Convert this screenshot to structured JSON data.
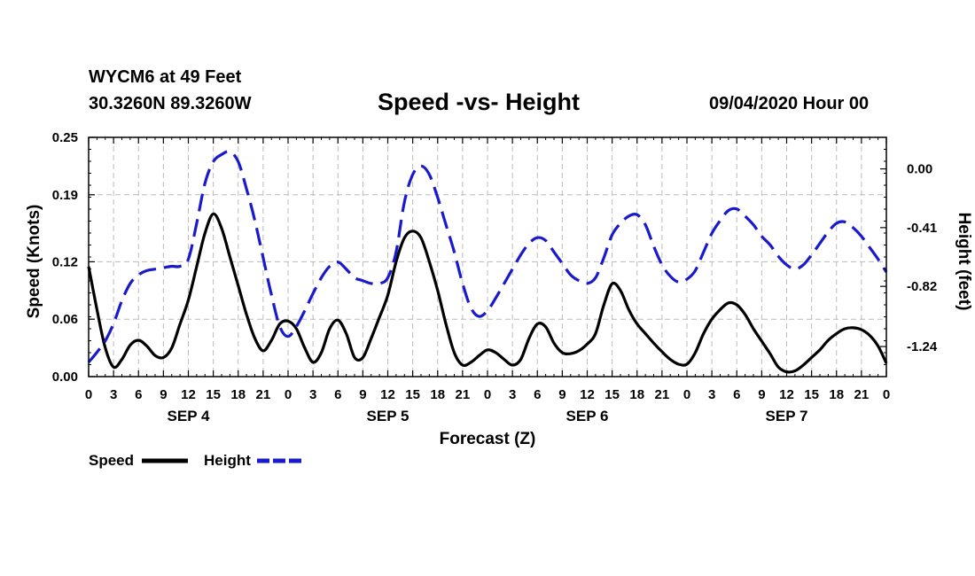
{
  "header": {
    "station": "WYCM6 at 49 Feet",
    "coords": "30.3260N 89.3260W",
    "title": "Speed -vs- Height",
    "datetime": "09/04/2020 Hour 00"
  },
  "colors": {
    "speed": "#000000",
    "height": "#1a1acd",
    "grid": "#bbbbbb"
  },
  "chart_data": {
    "type": "line",
    "title": "Speed -vs- Height",
    "xlabel": "Forecast (Z)",
    "ylabel": "Speed (Knots)",
    "y2label": "Height (feet)",
    "xlim": [
      0,
      96
    ],
    "ylim": [
      0,
      0.25
    ],
    "y2lim": [
      -1.45,
      0.22
    ],
    "x_tick_values": [
      0,
      3,
      6,
      9,
      12,
      15,
      18,
      21,
      24,
      27,
      30,
      33,
      36,
      39,
      42,
      45,
      48,
      51,
      54,
      57,
      60,
      63,
      66,
      69,
      72,
      75,
      78,
      81,
      84,
      87,
      90,
      93,
      96
    ],
    "x_tick_labels": [
      "0",
      "3",
      "6",
      "9",
      "12",
      "15",
      "18",
      "21",
      "0",
      "3",
      "6",
      "9",
      "12",
      "15",
      "18",
      "21",
      "0",
      "3",
      "6",
      "9",
      "12",
      "15",
      "18",
      "21",
      "0",
      "3",
      "6",
      "9",
      "12",
      "15",
      "18",
      "21",
      "0"
    ],
    "day_labels": [
      {
        "label": "SEP 4",
        "x": 12
      },
      {
        "label": "SEP 5",
        "x": 36
      },
      {
        "label": "SEP 6",
        "x": 60
      },
      {
        "label": "SEP 7",
        "x": 84
      }
    ],
    "y_ticks": [
      0.0,
      0.06,
      0.12,
      0.19,
      0.25
    ],
    "y_tick_labels": [
      "0.00",
      "0.06",
      "0.12",
      "0.19",
      "0.25"
    ],
    "y2_ticks": [
      0.0,
      -0.41,
      -0.82,
      -1.24
    ],
    "y2_tick_labels": [
      "0.00",
      "-0.41",
      "-0.82",
      "-1.24"
    ],
    "legend": [
      {
        "name": "Speed",
        "style": "solid"
      },
      {
        "name": "Height",
        "style": "dashed"
      }
    ],
    "legend_position": "bottom-left",
    "series": [
      {
        "name": "Speed",
        "axis": "left",
        "style": "solid",
        "x": [
          0,
          1,
          2,
          3,
          4,
          5,
          6,
          7,
          8,
          9,
          10,
          11,
          12,
          13,
          14,
          15,
          16,
          17,
          18,
          19,
          20,
          21,
          22,
          23,
          24,
          25,
          26,
          27,
          28,
          29,
          30,
          31,
          32,
          33,
          34,
          35,
          36,
          37,
          38,
          39,
          40,
          41,
          42,
          43,
          44,
          45,
          46,
          47,
          48,
          49,
          50,
          51,
          52,
          53,
          54,
          55,
          56,
          57,
          58,
          59,
          60,
          61,
          62,
          63,
          64,
          65,
          66,
          67,
          68,
          69,
          70,
          71,
          72,
          73,
          74,
          75,
          76,
          77,
          78,
          79,
          80,
          81,
          82,
          83,
          84,
          85,
          86,
          87,
          88,
          89,
          90,
          91,
          92,
          93,
          94,
          95,
          96
        ],
        "values": [
          0.115,
          0.07,
          0.03,
          0.01,
          0.018,
          0.033,
          0.038,
          0.032,
          0.022,
          0.02,
          0.03,
          0.055,
          0.08,
          0.115,
          0.15,
          0.17,
          0.155,
          0.125,
          0.095,
          0.065,
          0.04,
          0.027,
          0.038,
          0.055,
          0.058,
          0.05,
          0.03,
          0.015,
          0.025,
          0.05,
          0.059,
          0.045,
          0.02,
          0.02,
          0.04,
          0.062,
          0.085,
          0.12,
          0.145,
          0.152,
          0.145,
          0.12,
          0.09,
          0.055,
          0.025,
          0.012,
          0.015,
          0.022,
          0.028,
          0.025,
          0.018,
          0.012,
          0.018,
          0.04,
          0.055,
          0.052,
          0.035,
          0.025,
          0.024,
          0.027,
          0.034,
          0.045,
          0.075,
          0.097,
          0.09,
          0.07,
          0.055,
          0.045,
          0.035,
          0.026,
          0.018,
          0.013,
          0.013,
          0.025,
          0.045,
          0.06,
          0.07,
          0.077,
          0.075,
          0.065,
          0.05,
          0.037,
          0.024,
          0.01,
          0.005,
          0.006,
          0.012,
          0.02,
          0.028,
          0.038,
          0.045,
          0.05,
          0.051,
          0.049,
          0.043,
          0.032,
          0.014
        ]
      },
      {
        "name": "Height",
        "axis": "right",
        "style": "dashed",
        "x": [
          0,
          1,
          2,
          3,
          4,
          5,
          6,
          7,
          8,
          9,
          10,
          11,
          12,
          13,
          14,
          15,
          16,
          17,
          18,
          19,
          20,
          21,
          22,
          23,
          24,
          25,
          26,
          27,
          28,
          29,
          30,
          31,
          32,
          33,
          34,
          35,
          36,
          37,
          38,
          39,
          40,
          41,
          42,
          43,
          44,
          45,
          46,
          47,
          48,
          49,
          50,
          51,
          52,
          53,
          54,
          55,
          56,
          57,
          58,
          59,
          60,
          61,
          62,
          63,
          64,
          65,
          66,
          67,
          68,
          69,
          70,
          71,
          72,
          73,
          74,
          75,
          76,
          77,
          78,
          79,
          80,
          81,
          82,
          83,
          84,
          85,
          86,
          87,
          88,
          89,
          90,
          91,
          92,
          93,
          94,
          95,
          96
        ],
        "values": [
          -1.35,
          -1.28,
          -1.2,
          -1.08,
          -0.92,
          -0.8,
          -0.74,
          -0.71,
          -0.7,
          -0.69,
          -0.68,
          -0.68,
          -0.63,
          -0.38,
          -0.1,
          0.05,
          0.1,
          0.12,
          0.05,
          -0.14,
          -0.36,
          -0.62,
          -0.88,
          -1.1,
          -1.17,
          -1.1,
          -0.99,
          -0.87,
          -0.76,
          -0.68,
          -0.65,
          -0.7,
          -0.76,
          -0.78,
          -0.8,
          -0.8,
          -0.76,
          -0.58,
          -0.23,
          -0.04,
          0.02,
          -0.04,
          -0.2,
          -0.39,
          -0.58,
          -0.8,
          -0.97,
          -1.03,
          -0.99,
          -0.9,
          -0.8,
          -0.7,
          -0.6,
          -0.52,
          -0.48,
          -0.5,
          -0.58,
          -0.66,
          -0.74,
          -0.78,
          -0.8,
          -0.76,
          -0.62,
          -0.46,
          -0.38,
          -0.33,
          -0.32,
          -0.39,
          -0.54,
          -0.67,
          -0.75,
          -0.79,
          -0.77,
          -0.71,
          -0.58,
          -0.45,
          -0.36,
          -0.29,
          -0.28,
          -0.33,
          -0.39,
          -0.47,
          -0.53,
          -0.61,
          -0.67,
          -0.7,
          -0.67,
          -0.6,
          -0.52,
          -0.44,
          -0.38,
          -0.37,
          -0.41,
          -0.47,
          -0.55,
          -0.63,
          -0.72
        ]
      }
    ]
  }
}
